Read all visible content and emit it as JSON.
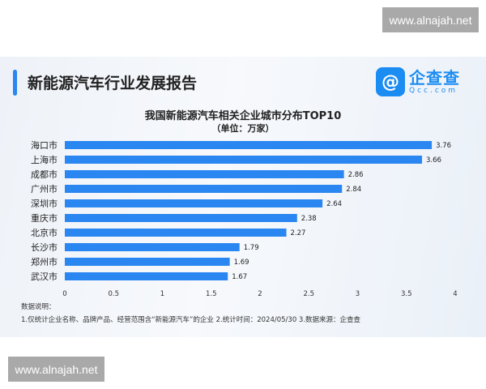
{
  "watermark": "www.alnajah.net",
  "header": {
    "title": "新能源汽车行业发展报告",
    "logo_cn": "企查查",
    "logo_en": "Qcc.com"
  },
  "chart_data": {
    "type": "bar",
    "orientation": "horizontal",
    "title": "我国新能源汽车相关企业城市分布TOP10",
    "subtitle": "（单位：万家）",
    "categories": [
      "海口市",
      "上海市",
      "成都市",
      "广州市",
      "深圳市",
      "重庆市",
      "北京市",
      "长沙市",
      "郑州市",
      "武汉市"
    ],
    "values": [
      3.76,
      3.66,
      2.86,
      2.84,
      2.64,
      2.38,
      2.27,
      1.79,
      1.69,
      1.67
    ],
    "xlim": [
      0,
      4
    ],
    "xticks": [
      "0",
      "0.5",
      "1",
      "1.5",
      "2",
      "2.5",
      "3",
      "3.5",
      "4"
    ],
    "bar_color": "#2a86f0",
    "grid": false
  },
  "notes": {
    "heading": "数据说明：",
    "text": "1.仅统计企业名称、品牌产品、经营范围含“新能源汽车”的企业  2.统计时间：2024/05/30   3.数据来源：企查查"
  }
}
